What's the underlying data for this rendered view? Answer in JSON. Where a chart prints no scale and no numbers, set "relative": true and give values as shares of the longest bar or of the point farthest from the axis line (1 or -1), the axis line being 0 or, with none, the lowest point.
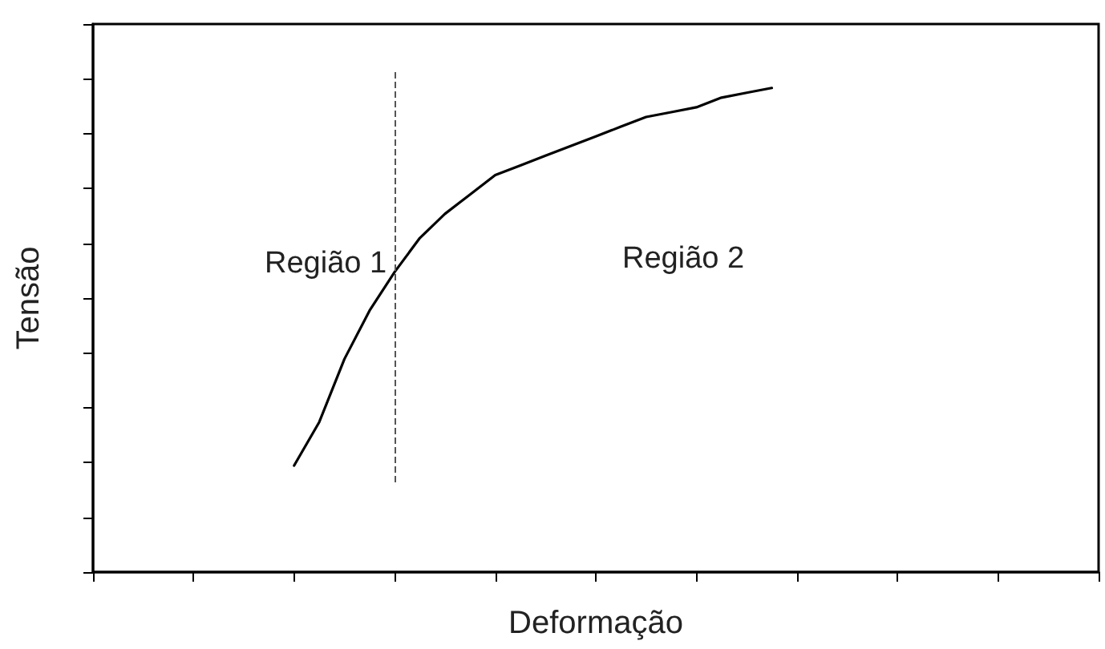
{
  "chart_data": {
    "type": "line",
    "relative": true,
    "xlabel": "Deformação",
    "ylabel": "Tensão",
    "categories": [
      null,
      null,
      null,
      null,
      null,
      null,
      null,
      null,
      null,
      null,
      null,
      null,
      null,
      null,
      null,
      null,
      null,
      null,
      null,
      null,
      null,
      null,
      null,
      null,
      null,
      null,
      null,
      null,
      null,
      null,
      null,
      null,
      null,
      null,
      null,
      null,
      null,
      null,
      null,
      null,
      null
    ],
    "series": [
      {
        "color": "#000000",
        "values": [
          null,
          null,
          null,
          null,
          null,
          null,
          null,
          null,
          0.22,
          0.31,
          0.44,
          0.54,
          0.62,
          0.69,
          0.74,
          0.78,
          0.82,
          0.84,
          0.86,
          0.88,
          0.9,
          0.92,
          0.94,
          0.95,
          0.96,
          0.98,
          0.99,
          1,
          null,
          null,
          null,
          null,
          null,
          null,
          null,
          null,
          null,
          null,
          null,
          null,
          null
        ]
      }
    ],
    "annotations": [
      "Região 1",
      "Região 2"
    ],
    "marker": "none",
    "line_style": "solid"
  }
}
